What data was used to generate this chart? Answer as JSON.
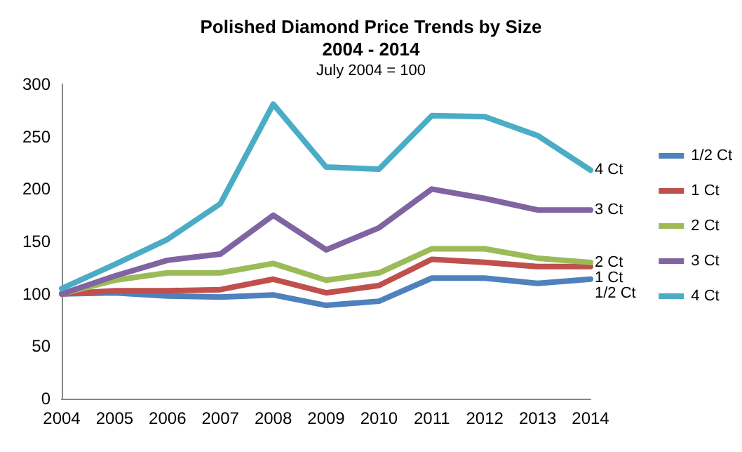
{
  "chart_data": {
    "type": "line",
    "title": "Polished Diamond Price Trends by Size\n2004 - 2014",
    "subtitle": "July 2004 = 100",
    "categories": [
      "2004",
      "2005",
      "2006",
      "2007",
      "2008",
      "2009",
      "2010",
      "2011",
      "2012",
      "2013",
      "2014"
    ],
    "series": [
      {
        "name": "1/2 Ct",
        "color": "#4f81bd",
        "values": [
          100,
          101,
          98,
          97,
          99,
          89,
          93,
          115,
          115,
          110,
          114
        ]
      },
      {
        "name": "1 Ct",
        "color": "#c0504d",
        "values": [
          100,
          103,
          103,
          104,
          114,
          101,
          108,
          133,
          130,
          126,
          126
        ]
      },
      {
        "name": "2 Ct",
        "color": "#9bbb59",
        "values": [
          100,
          113,
          120,
          120,
          129,
          113,
          120,
          143,
          143,
          134,
          130
        ]
      },
      {
        "name": "3 Ct",
        "color": "#8064a2",
        "values": [
          100,
          117,
          132,
          138,
          175,
          142,
          163,
          200,
          191,
          180,
          180
        ]
      },
      {
        "name": "4 Ct",
        "color": "#4bacc6",
        "values": [
          105,
          128,
          152,
          186,
          281,
          221,
          219,
          270,
          269,
          251,
          218
        ]
      }
    ],
    "ylim": [
      0,
      300
    ],
    "yticks": [
      0,
      50,
      100,
      150,
      200,
      250,
      300
    ],
    "grid": false,
    "legend": "right",
    "marker": "none",
    "line_style": "solid"
  }
}
